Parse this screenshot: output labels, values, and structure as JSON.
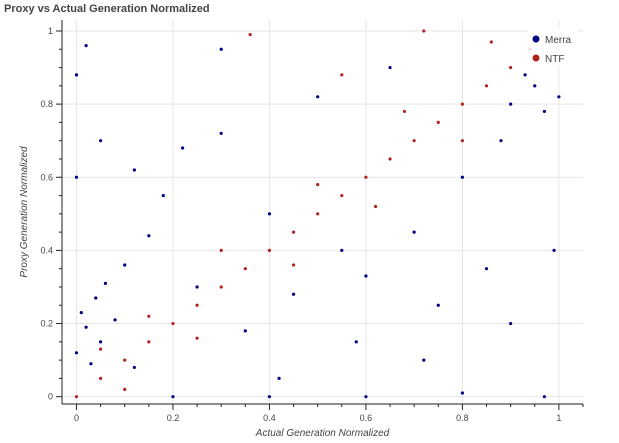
{
  "chart_data": {
    "type": "scatter",
    "title": "Proxy vs Actual Generation Normalized",
    "xlabel": "Actual Generation Normalized",
    "ylabel": "Proxy Generation Normalized",
    "xlim": [
      -0.03,
      1.05
    ],
    "ylim": [
      -0.02,
      1.03
    ],
    "x_ticks": [
      0,
      0.2,
      0.4,
      0.6,
      0.8,
      1
    ],
    "y_ticks": [
      0,
      0.2,
      0.4,
      0.6,
      0.8,
      1
    ],
    "grid": true,
    "legend_position": "top-right",
    "series": [
      {
        "name": "Merra",
        "color": "#000080",
        "points": [
          [
            0.02,
            0.96
          ],
          [
            0.0,
            0.12
          ],
          [
            0.01,
            0.23
          ],
          [
            0.02,
            0.19
          ],
          [
            0.03,
            0.09
          ],
          [
            0.04,
            0.27
          ],
          [
            0.05,
            0.15
          ],
          [
            0.06,
            0.31
          ],
          [
            0.08,
            0.21
          ],
          [
            0.1,
            0.36
          ],
          [
            0.12,
            0.08
          ],
          [
            0.15,
            0.44
          ],
          [
            0.18,
            0.55
          ],
          [
            0.22,
            0.68
          ],
          [
            0.25,
            0.3
          ],
          [
            0.3,
            0.72
          ],
          [
            0.35,
            0.18
          ],
          [
            0.4,
            0.5
          ],
          [
            0.45,
            0.28
          ],
          [
            0.5,
            0.82
          ],
          [
            0.55,
            0.4
          ],
          [
            0.6,
            0.33
          ],
          [
            0.65,
            0.9
          ],
          [
            0.7,
            0.45
          ],
          [
            0.75,
            0.25
          ],
          [
            0.8,
            0.6
          ],
          [
            0.85,
            0.35
          ],
          [
            0.9,
            0.8
          ],
          [
            0.95,
            0.85
          ],
          [
            1.0,
            0.82
          ],
          [
            0.97,
            0.78
          ],
          [
            0.93,
            0.88
          ],
          [
            0.88,
            0.7
          ],
          [
            0.2,
            0.0
          ],
          [
            0.4,
            0.0
          ],
          [
            0.6,
            0.0
          ],
          [
            0.8,
            0.01
          ],
          [
            0.97,
            0.0
          ],
          [
            0.0,
            0.6
          ],
          [
            0.0,
            0.88
          ],
          [
            0.05,
            0.7
          ],
          [
            0.12,
            0.62
          ],
          [
            0.3,
            0.95
          ],
          [
            0.42,
            0.05
          ],
          [
            0.58,
            0.15
          ],
          [
            0.72,
            0.1
          ],
          [
            0.9,
            0.2
          ],
          [
            0.99,
            0.4
          ]
        ]
      },
      {
        "name": "NTF",
        "color": "#b22222",
        "points": [
          [
            0.0,
            0.0
          ],
          [
            0.05,
            0.05
          ],
          [
            0.1,
            0.1
          ],
          [
            0.15,
            0.15
          ],
          [
            0.2,
            0.2
          ],
          [
            0.25,
            0.25
          ],
          [
            0.3,
            0.3
          ],
          [
            0.35,
            0.35
          ],
          [
            0.4,
            0.4
          ],
          [
            0.45,
            0.45
          ],
          [
            0.5,
            0.5
          ],
          [
            0.55,
            0.55
          ],
          [
            0.6,
            0.6
          ],
          [
            0.65,
            0.65
          ],
          [
            0.7,
            0.7
          ],
          [
            0.75,
            0.75
          ],
          [
            0.8,
            0.8
          ],
          [
            0.85,
            0.85
          ],
          [
            0.9,
            0.9
          ],
          [
            0.94,
            0.95
          ],
          [
            0.36,
            0.99
          ],
          [
            0.72,
            1.0
          ],
          [
            0.05,
            0.13
          ],
          [
            0.15,
            0.22
          ],
          [
            0.3,
            0.4
          ],
          [
            0.5,
            0.58
          ],
          [
            0.68,
            0.78
          ],
          [
            0.1,
            0.02
          ],
          [
            0.25,
            0.16
          ],
          [
            0.45,
            0.36
          ],
          [
            0.62,
            0.52
          ],
          [
            0.8,
            0.7
          ],
          [
            0.55,
            0.88
          ],
          [
            0.86,
            0.97
          ]
        ]
      }
    ]
  }
}
